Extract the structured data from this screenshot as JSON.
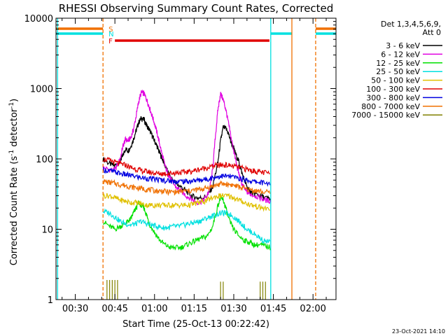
{
  "chart_data": {
    "type": "line",
    "title": "RHESSI Observing Summary Count Rates, Corrected",
    "xlabel": "Start Time (25-Oct-13 00:22:42)",
    "ylabel_main": "Corrected Count Rate (s",
    "ylabel_sup1": "-1",
    "ylabel_mid": " detector",
    "ylabel_sup2": "-1",
    "ylabel_end": ")",
    "yscale": "log",
    "ylim": [
      1,
      10000
    ],
    "xlim_minutes": [
      22.7,
      128.7
    ],
    "x_ticks": [
      {
        "label": "00:30",
        "minutes": 30
      },
      {
        "label": "00:45",
        "minutes": 45
      },
      {
        "label": "01:00",
        "minutes": 60
      },
      {
        "label": "01:15",
        "minutes": 75
      },
      {
        "label": "01:30",
        "minutes": 90
      },
      {
        "label": "01:45",
        "minutes": 105
      },
      {
        "label": "02:00",
        "minutes": 120
      }
    ],
    "y_ticks": [
      {
        "label": "1",
        "value": 1
      },
      {
        "label": "10",
        "value": 10
      },
      {
        "label": "100",
        "value": 100
      },
      {
        "label": "1000",
        "value": 1000
      },
      {
        "label": "10000",
        "value": 10000
      }
    ],
    "legend_title": [
      "Det 1,3,4,5,6,9,",
      "Att 0"
    ],
    "legend_position": "right",
    "series": [
      {
        "name": "3 - 6 keV",
        "color": "#000000",
        "x": [
          40.5,
          43,
          45,
          47,
          48,
          49,
          50,
          51,
          52,
          53,
          54,
          55,
          56,
          57,
          58,
          59,
          60,
          61,
          62,
          63,
          64,
          65,
          66,
          68,
          70,
          72,
          74,
          76,
          78,
          80,
          82,
          84,
          85,
          86,
          87,
          88,
          89,
          90,
          91,
          92,
          93,
          94,
          95,
          96,
          97,
          98,
          100,
          102,
          104
        ],
        "y": [
          100,
          85,
          80,
          95,
          110,
          140,
          130,
          150,
          190,
          250,
          330,
          380,
          360,
          300,
          260,
          220,
          180,
          150,
          120,
          100,
          80,
          65,
          55,
          45,
          40,
          35,
          30,
          28,
          28,
          30,
          40,
          90,
          180,
          280,
          270,
          230,
          170,
          140,
          110,
          90,
          65,
          50,
          40,
          35,
          33,
          32,
          30,
          28,
          27
        ]
      },
      {
        "name": "6 - 12 keV",
        "color": "#e000e0",
        "x": [
          40.5,
          43,
          45,
          47,
          48,
          49,
          50,
          51,
          52,
          53,
          54,
          55,
          56,
          57,
          58,
          59,
          60,
          61,
          62,
          63,
          64,
          65,
          66,
          68,
          70,
          72,
          74,
          76,
          78,
          80,
          81,
          82,
          83,
          84,
          85,
          86,
          87,
          88,
          89,
          90,
          91,
          92,
          93,
          94,
          95,
          96,
          98,
          100,
          102,
          104
        ],
        "y": [
          75,
          70,
          70,
          100,
          150,
          190,
          180,
          200,
          260,
          400,
          650,
          880,
          850,
          700,
          550,
          420,
          320,
          230,
          160,
          110,
          80,
          62,
          52,
          40,
          35,
          30,
          27,
          24,
          25,
          30,
          40,
          70,
          200,
          500,
          850,
          700,
          500,
          320,
          200,
          130,
          85,
          60,
          45,
          38,
          34,
          32,
          30,
          28,
          26,
          25
        ]
      },
      {
        "name": "12 - 25 keV",
        "color": "#00e000",
        "x": [
          40.5,
          43,
          45,
          47,
          49,
          50,
          51,
          52,
          53,
          54,
          55,
          56,
          57,
          58,
          60,
          62,
          64,
          66,
          68,
          70,
          72,
          74,
          76,
          78,
          80,
          82,
          84,
          85,
          86,
          87,
          88,
          90,
          92,
          94,
          96,
          98,
          100,
          102,
          104
        ],
        "y": [
          13,
          11,
          10,
          11,
          12,
          13,
          14,
          17,
          20,
          24,
          22,
          20,
          16,
          12,
          9,
          7,
          6,
          5.5,
          5.5,
          5.5,
          6,
          6.5,
          7,
          7.5,
          8,
          11,
          22,
          28,
          26,
          20,
          14,
          10,
          8,
          7,
          6.5,
          6,
          6,
          5.8,
          5.5
        ]
      },
      {
        "name": "25 - 50 keV",
        "color": "#00e0e0",
        "x": [
          40.5,
          43,
          45,
          47,
          49,
          51,
          53,
          55,
          57,
          59,
          61,
          63,
          65,
          67,
          69,
          71,
          73,
          75,
          77,
          79,
          81,
          83,
          85,
          87,
          89,
          91,
          93,
          95,
          97,
          99,
          101,
          104
        ],
        "y": [
          18,
          17,
          15,
          13,
          12,
          11.5,
          12,
          13,
          12,
          11.5,
          11,
          10.5,
          10.5,
          11,
          11,
          11.5,
          12,
          12.5,
          13,
          14,
          15,
          16,
          17,
          17,
          16,
          14,
          12,
          10,
          9,
          8,
          7,
          6.5
        ]
      },
      {
        "name": "50 - 100 keV",
        "color": "#e0c000",
        "x": [
          40.5,
          43,
          45,
          47,
          49,
          51,
          53,
          55,
          57,
          59,
          61,
          63,
          65,
          67,
          69,
          71,
          73,
          75,
          77,
          79,
          81,
          83,
          85,
          87,
          89,
          91,
          93,
          95,
          97,
          99,
          101,
          104
        ],
        "y": [
          30,
          30,
          28,
          26,
          25,
          24,
          24,
          23,
          22,
          22,
          22,
          22,
          22,
          22,
          22,
          22,
          22,
          23,
          24,
          25,
          27,
          29,
          30,
          30,
          29,
          27,
          25,
          23,
          22,
          21,
          20,
          19
        ]
      },
      {
        "name": "100 - 300 keV",
        "color": "#e00000",
        "x": [
          40.5,
          43,
          45,
          47,
          49,
          51,
          53,
          55,
          57,
          59,
          61,
          63,
          65,
          67,
          69,
          71,
          73,
          75,
          77,
          79,
          81,
          83,
          85,
          87,
          89,
          91,
          93,
          95,
          97,
          99,
          101,
          104
        ],
        "y": [
          100,
          95,
          90,
          85,
          82,
          75,
          72,
          68,
          66,
          64,
          62,
          62,
          62,
          63,
          64,
          65,
          66,
          68,
          71,
          74,
          77,
          80,
          82,
          82,
          80,
          77,
          74,
          71,
          68,
          66,
          64,
          62
        ]
      },
      {
        "name": "300 - 800 keV",
        "color": "#0000e0",
        "x": [
          40.5,
          43,
          45,
          47,
          49,
          51,
          53,
          55,
          57,
          59,
          61,
          63,
          65,
          67,
          69,
          71,
          73,
          75,
          77,
          79,
          81,
          83,
          85,
          87,
          89,
          91,
          93,
          95,
          97,
          99,
          101,
          104
        ],
        "y": [
          70,
          68,
          65,
          62,
          60,
          58,
          56,
          54,
          53,
          52,
          51,
          50,
          49,
          48,
          48,
          48,
          48,
          49,
          50,
          51,
          53,
          55,
          57,
          57,
          56,
          54,
          52,
          50,
          48,
          47,
          46,
          45
        ]
      },
      {
        "name": "800 - 7000 keV",
        "color": "#f07000",
        "x": [
          40.5,
          43,
          45,
          47,
          49,
          51,
          53,
          55,
          57,
          59,
          61,
          63,
          65,
          67,
          69,
          71,
          73,
          75,
          77,
          79,
          81,
          83,
          85,
          87,
          89,
          91,
          93,
          95,
          97,
          99,
          101,
          104
        ],
        "y": [
          48,
          46,
          45,
          43,
          42,
          40,
          39,
          38,
          37,
          36,
          35,
          35,
          34,
          34,
          34,
          35,
          35,
          36,
          37,
          38,
          40,
          42,
          44,
          44,
          43,
          41,
          39,
          37,
          36,
          35,
          34,
          33
        ]
      },
      {
        "name": "7000 - 15000 keV",
        "color": "#808000",
        "x": [
          42,
          43,
          44,
          45,
          46,
          85,
          86,
          100,
          101,
          102
        ],
        "y": [
          1.9,
          1.9,
          1.9,
          1.9,
          1.9,
          1.8,
          1.8,
          1.8,
          1.8,
          1.8
        ]
      }
    ],
    "flags": {
      "S": {
        "label": "S",
        "color": "#f07000",
        "segments_minutes": [
          [
            22.7,
            40.5
          ],
          [
            121,
            128.7
          ]
        ]
      },
      "N": {
        "label": "N",
        "color": "#00e0e0",
        "segments_minutes": [
          [
            22.7,
            40.5
          ],
          [
            104,
            112
          ],
          [
            121,
            128.7
          ]
        ]
      },
      "F": {
        "label": "F",
        "color": "#e00000",
        "segments_minutes": [
          [
            45,
            103.5
          ]
        ]
      }
    },
    "vlines": [
      {
        "minutes": 23.3,
        "color": "#00e0e0",
        "style": "solid"
      },
      {
        "minutes": 40.5,
        "color": "#f07000",
        "style": "dashed"
      },
      {
        "minutes": 104,
        "color": "#00e0e0",
        "style": "solid"
      },
      {
        "minutes": 112,
        "color": "#f07000",
        "style": "solid"
      },
      {
        "minutes": 121,
        "color": "#f07000",
        "style": "dashed"
      }
    ]
  },
  "footer": {
    "date_stamp": "23-Oct-2021 14:10"
  }
}
